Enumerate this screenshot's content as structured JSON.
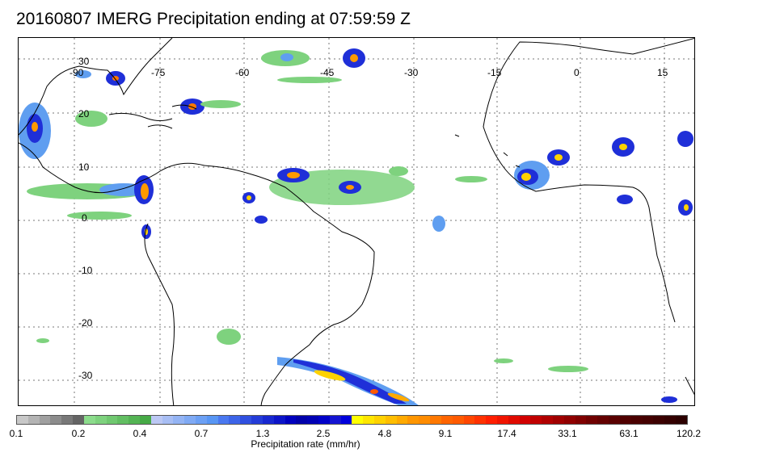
{
  "title": "20160807 IMERG Precipitation ending at 07:59:59 Z",
  "lon_labels": [
    "-90",
    "-75",
    "-60",
    "-45",
    "-30",
    "-15",
    "0",
    "15"
  ],
  "lat_labels": [
    "30",
    "20",
    "10",
    "0",
    "-10",
    "-20",
    "-30"
  ],
  "colorbar": {
    "label": "Precipitation rate (mm/hr)",
    "ticks": [
      "0.1",
      "0.2",
      "0.4",
      "0.7",
      "1.3",
      "2.5",
      "4.8",
      "9.1",
      "17.4",
      "33.1",
      "63.1",
      "120.2"
    ],
    "colors": [
      "#c8c8c8",
      "#b4b4b4",
      "#a0a0a0",
      "#8c8c8c",
      "#787878",
      "#646464",
      "#8cdc8c",
      "#7ed27e",
      "#70c870",
      "#62be62",
      "#54b454",
      "#46aa46",
      "#bcc8f4",
      "#a8bef4",
      "#94b4f4",
      "#80aaf4",
      "#6ca0f4",
      "#5896f4",
      "#4a78f0",
      "#3c64e8",
      "#3050e0",
      "#243cd8",
      "#1828d0",
      "#0c14c8",
      "#0000be",
      "#0000aa",
      "#0000b4",
      "#0000c8",
      "#1414d2",
      "#0000dc",
      "#ffff00",
      "#ffe600",
      "#ffd200",
      "#ffbe00",
      "#ffaa00",
      "#ff9600",
      "#ff8c00",
      "#ff7800",
      "#ff6400",
      "#ff5a00",
      "#ff4600",
      "#ff3200",
      "#ff1e00",
      "#f01400",
      "#e00a00",
      "#d20000",
      "#c00000",
      "#b00000",
      "#a00000",
      "#900000",
      "#800000",
      "#700000",
      "#640000",
      "#5a0000",
      "#500000",
      "#4a0000",
      "#440000",
      "#3c0000",
      "#340000",
      "#2c0000"
    ]
  }
}
